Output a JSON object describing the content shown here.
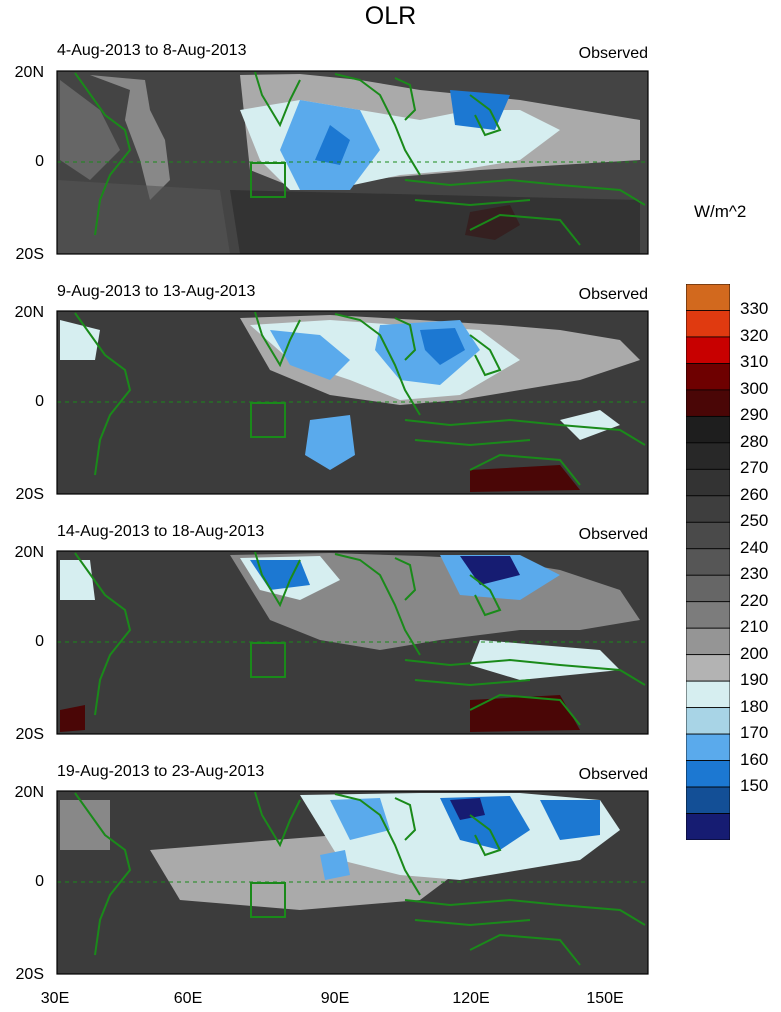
{
  "title": "OLR",
  "panels": [
    {
      "date": "4-Aug-2013 to 8-Aug-2013",
      "tag": "Observed"
    },
    {
      "date": "9-Aug-2013 to 13-Aug-2013",
      "tag": "Observed"
    },
    {
      "date": "14-Aug-2013 to 18-Aug-2013",
      "tag": "Observed"
    },
    {
      "date": "19-Aug-2013 to 23-Aug-2013",
      "tag": "Observed"
    }
  ],
  "y_ticks": [
    "20N",
    "0",
    "20S"
  ],
  "x_ticks": [
    "30E",
    "60E",
    "90E",
    "120E",
    "150E"
  ],
  "colorbar": {
    "unit": "W/m^2",
    "levels": [
      "330",
      "320",
      "310",
      "300",
      "290",
      "280",
      "270",
      "260",
      "250",
      "240",
      "230",
      "220",
      "210",
      "200",
      "190",
      "180",
      "170",
      "160",
      "150"
    ],
    "colors": [
      "#d2691e",
      "#e03a10",
      "#c80000",
      "#6e0000",
      "#4a0606",
      "#1e1e1e",
      "#282828",
      "#333333",
      "#3e3e3e",
      "#4a4a4a",
      "#565656",
      "#666666",
      "#7c7c7c",
      "#959595",
      "#b3b3b3",
      "#d6eef0",
      "#a8d4e6",
      "#5aaaec",
      "#1c78d2",
      "#134f96",
      "#161c72"
    ]
  },
  "map": {
    "lon_range": [
      30,
      160
    ],
    "lat_range": [
      -20,
      20
    ],
    "coast_color": "#1a8a1a",
    "box_region": {
      "lon": [
        73,
        80
      ],
      "lat": [
        -7,
        0
      ]
    }
  }
}
